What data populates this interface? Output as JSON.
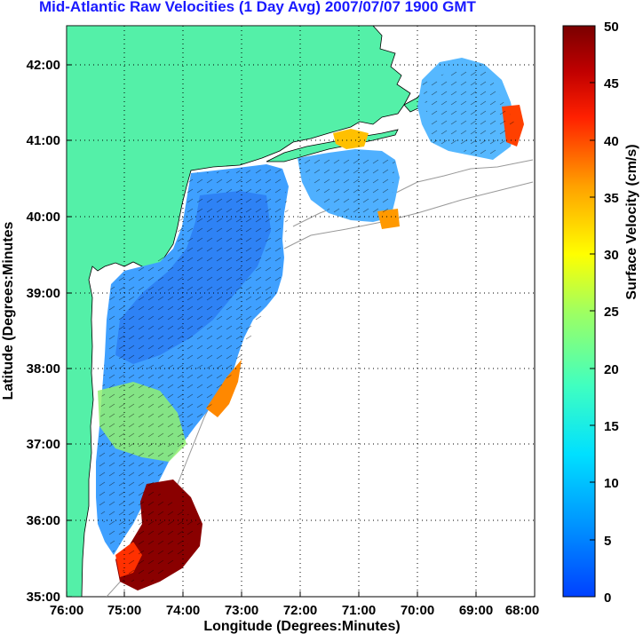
{
  "title": "Mid-Atlantic Raw Velocities (1 Day Avg) 2007/07/07 1900 GMT",
  "map": {
    "xlabel": "Longitude (Degrees:Minutes)",
    "ylabel": "Latitude (Degrees:Minutes",
    "x_ticks": [
      "76:00",
      "75:00",
      "74:00",
      "73:00",
      "72:00",
      "71:00",
      "70:00",
      "69:00",
      "68:00"
    ],
    "y_ticks": [
      "42:00",
      "41:00",
      "40:00",
      "39:00",
      "38:00",
      "37:00",
      "36:00",
      "35:00"
    ],
    "lon_range": [
      -76,
      -68
    ],
    "lat_range": [
      35,
      42.5
    ],
    "grid": "dotted",
    "land_color": "#54f0a8"
  },
  "colorbar": {
    "label": "Surface Velocity (cm/s)",
    "ticks": [
      "50",
      "45",
      "40",
      "35",
      "30",
      "25",
      "20",
      "15",
      "10",
      "5",
      "0"
    ],
    "range": [
      0,
      50
    ],
    "colormap": "jet"
  }
}
